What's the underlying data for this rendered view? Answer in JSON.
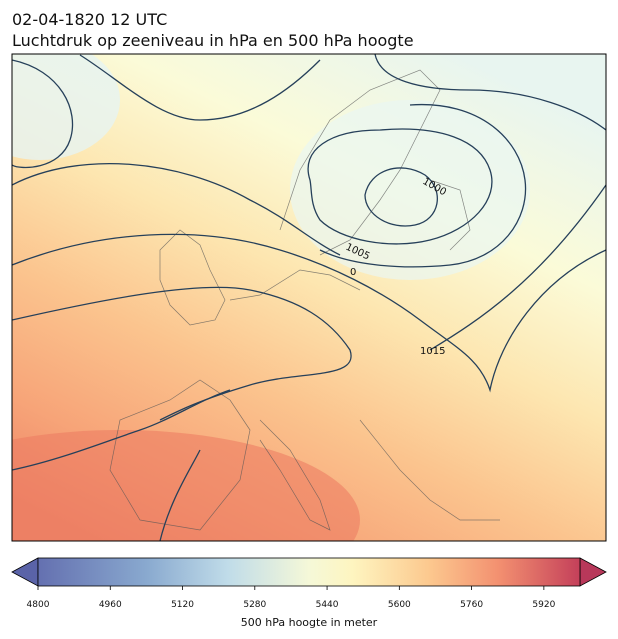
{
  "title": "02-04-1820 12 UTC",
  "subtitle": "Luchtdruk op zeeniveau in hPa en 500 hPa hoogte",
  "map": {
    "contour_labels": [
      "1000",
      "1005",
      "0",
      "1015"
    ]
  },
  "colorbar": {
    "xlim": [
      4800,
      6000
    ],
    "xticks": [
      4800,
      4960,
      5120,
      5280,
      5440,
      5600,
      5760,
      5920
    ],
    "label": "500 hPa hoogte in meter"
  }
}
